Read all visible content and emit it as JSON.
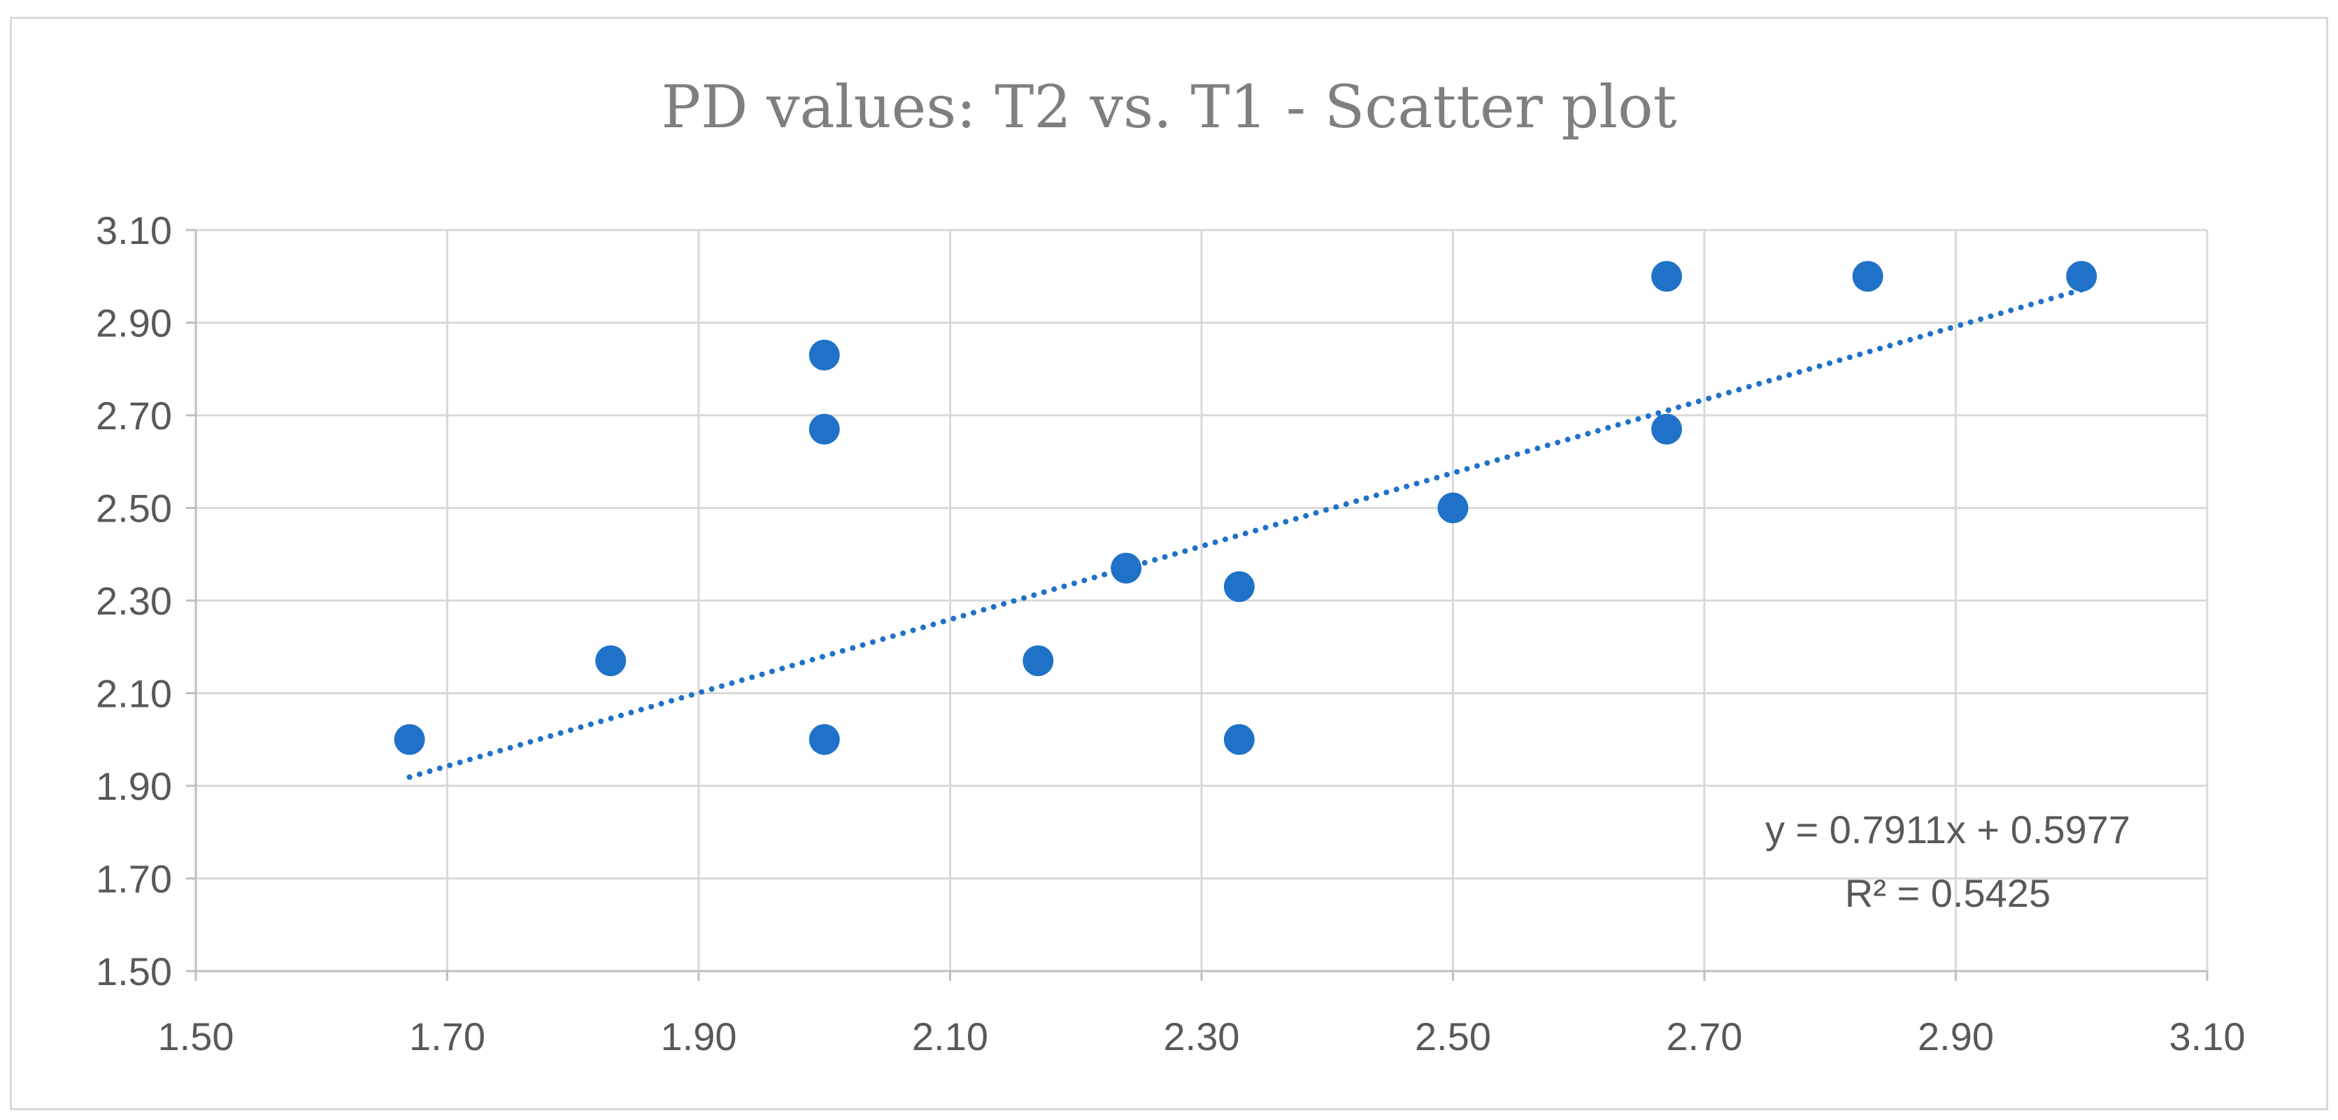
{
  "chart_data": {
    "type": "scatter",
    "title": "PD values: T2  vs. T1 - Scatter plot",
    "xlabel": "",
    "ylabel": "",
    "xlim": [
      1.5,
      3.1
    ],
    "ylim": [
      1.5,
      3.1
    ],
    "x_ticks": [
      "1.50",
      "1.70",
      "1.90",
      "2.10",
      "2.30",
      "2.50",
      "2.70",
      "2.90",
      "3.10"
    ],
    "y_ticks": [
      "1.50",
      "1.70",
      "1.90",
      "2.10",
      "2.30",
      "2.50",
      "2.70",
      "2.90",
      "3.10"
    ],
    "grid": true,
    "legend": "none",
    "marker_color": "#1f72c8",
    "trendline_color": "#1f72c8",
    "series": [
      {
        "points": [
          {
            "x": 1.67,
            "y": 2.0
          },
          {
            "x": 1.83,
            "y": 2.17
          },
          {
            "x": 2.0,
            "y": 2.83
          },
          {
            "x": 2.0,
            "y": 2.67
          },
          {
            "x": 2.0,
            "y": 2.0
          },
          {
            "x": 2.17,
            "y": 2.17
          },
          {
            "x": 2.24,
            "y": 2.37
          },
          {
            "x": 2.33,
            "y": 2.33
          },
          {
            "x": 2.33,
            "y": 2.0
          },
          {
            "x": 2.5,
            "y": 2.5
          },
          {
            "x": 2.67,
            "y": 3.0
          },
          {
            "x": 2.67,
            "y": 2.67
          },
          {
            "x": 2.83,
            "y": 3.0
          },
          {
            "x": 3.0,
            "y": 3.0
          }
        ]
      }
    ],
    "trendline": {
      "type": "linear",
      "slope": 0.7911,
      "intercept": 0.5977,
      "x_range": [
        1.67,
        3.0
      ],
      "equation": "y = 0.7911x + 0.5977",
      "r_squared": "R² = 0.5425"
    }
  }
}
